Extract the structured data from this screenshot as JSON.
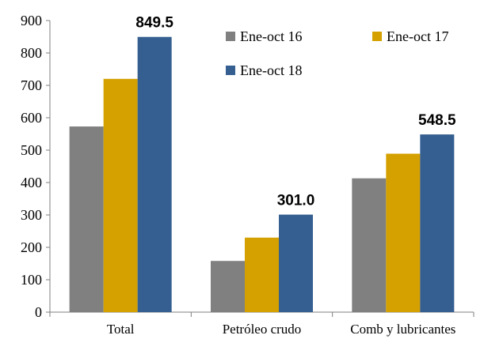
{
  "chart_data": {
    "type": "bar",
    "categories": [
      "Total",
      "Petróleo crudo",
      "Comb y lubricantes"
    ],
    "series": [
      {
        "name": "Ene-oct 16",
        "color": "#808080",
        "values": [
          573,
          158,
          413
        ]
      },
      {
        "name": "Ene-oct 17",
        "color": "#d4a100",
        "values": [
          720,
          230,
          489
        ]
      },
      {
        "name": "Ene-oct 18",
        "color": "#355f91",
        "values": [
          849.5,
          301.0,
          548.5
        ]
      }
    ],
    "data_labels": [
      {
        "category": "Total",
        "series": "Ene-oct 18",
        "text": "849.5"
      },
      {
        "category": "Petróleo crudo",
        "series": "Ene-oct 18",
        "text": "301.0"
      },
      {
        "category": "Comb y lubricantes",
        "series": "Ene-oct 18",
        "text": "548.5"
      }
    ],
    "yticks": [
      "0",
      "100",
      "200",
      "300",
      "400",
      "500",
      "600",
      "700",
      "800",
      "900"
    ],
    "ylim": [
      0,
      900
    ],
    "title": "",
    "xlabel": "",
    "ylabel": "",
    "grid": false,
    "legend_position": "top-right"
  }
}
